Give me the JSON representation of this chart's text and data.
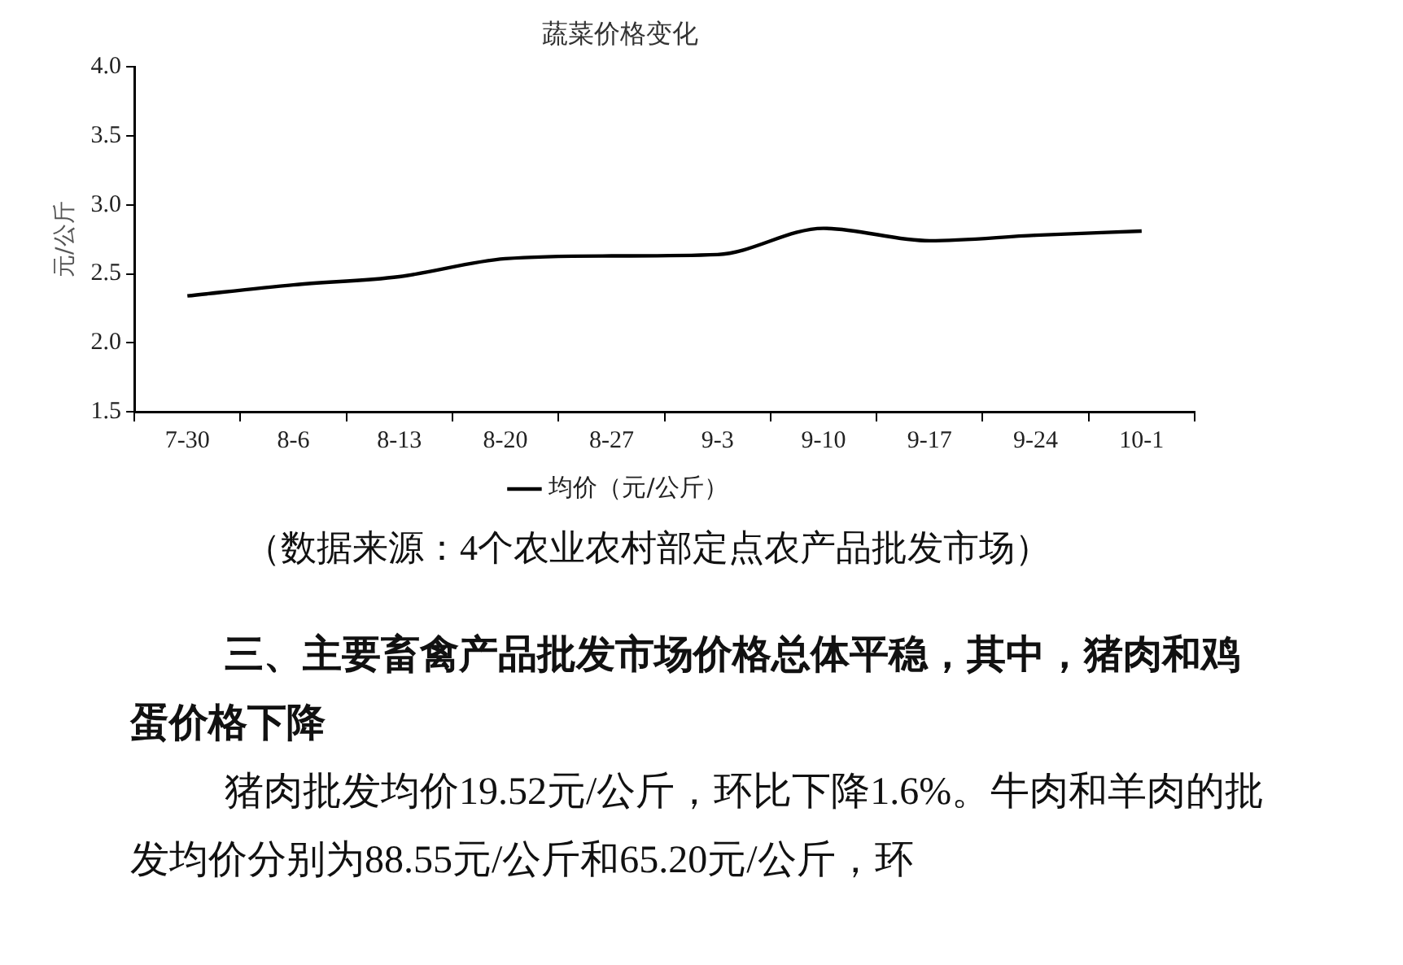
{
  "chart_data": {
    "type": "line",
    "title": "蔬菜价格变化",
    "ylabel": "元/公斤",
    "categories": [
      "7-30",
      "8-6",
      "8-13",
      "8-20",
      "8-27",
      "9-3",
      "9-10",
      "9-17",
      "9-24",
      "10-1"
    ],
    "series": [
      {
        "name": "均价（元/公斤）",
        "color": "#000000",
        "values": [
          2.34,
          2.42,
          2.48,
          2.61,
          2.63,
          2.64,
          2.83,
          2.74,
          2.78,
          2.81
        ]
      }
    ],
    "ylim": [
      1.5,
      4.0
    ],
    "yticks": [
      {
        "value": 1.5,
        "label": "1.5"
      },
      {
        "value": 2,
        "label": "2.0"
      },
      {
        "value": 2.5,
        "label": "2.5"
      },
      {
        "value": 3,
        "label": "3.0"
      },
      {
        "value": 3.5,
        "label": "3.5"
      },
      {
        "value": 4,
        "label": "4.0"
      }
    ],
    "grid": false,
    "legend": "bottom",
    "annotations": [
      "（数据来源：4个农业农村部定点农产品批发市场）",
      "三、主要畜禽产品批发市场价格总体平稳，其中，猪肉和鸡蛋价格下降",
      "猪肉批发均价19.52元/公斤，环比下降1.6%。牛肉和羊肉的批发均价分别为88.55元/公斤和65.20元/公斤，环"
    ]
  }
}
